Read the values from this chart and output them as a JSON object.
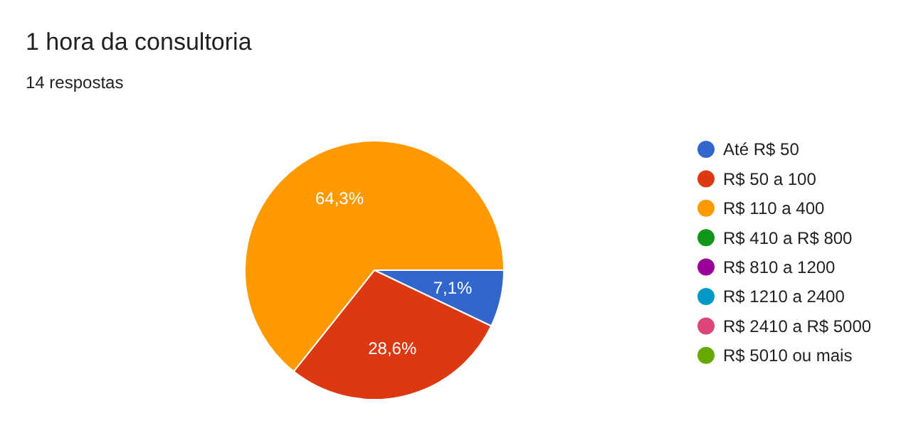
{
  "chart_data": {
    "type": "pie",
    "title": "1 hora da consultoria",
    "subtitle": "14 respostas",
    "categories": [
      "Até R$ 50",
      "R$ 50 a 100",
      "R$ 110 a 400",
      "R$ 410 a R$ 800",
      "R$ 810 a 1200",
      "R$ 1210 a 2400",
      "R$ 2410 a R$ 5000",
      "R$ 5010 ou mais"
    ],
    "values": [
      7.1,
      28.6,
      64.3,
      0,
      0,
      0,
      0,
      0
    ],
    "value_labels": [
      "7,1%",
      "28,6%",
      "64,3%",
      null,
      null,
      null,
      null,
      null
    ],
    "colors": [
      "#3366cc",
      "#dc3912",
      "#ff9900",
      "#109618",
      "#990099",
      "#0099c6",
      "#dd4477",
      "#66aa00"
    ],
    "legend": "right"
  }
}
